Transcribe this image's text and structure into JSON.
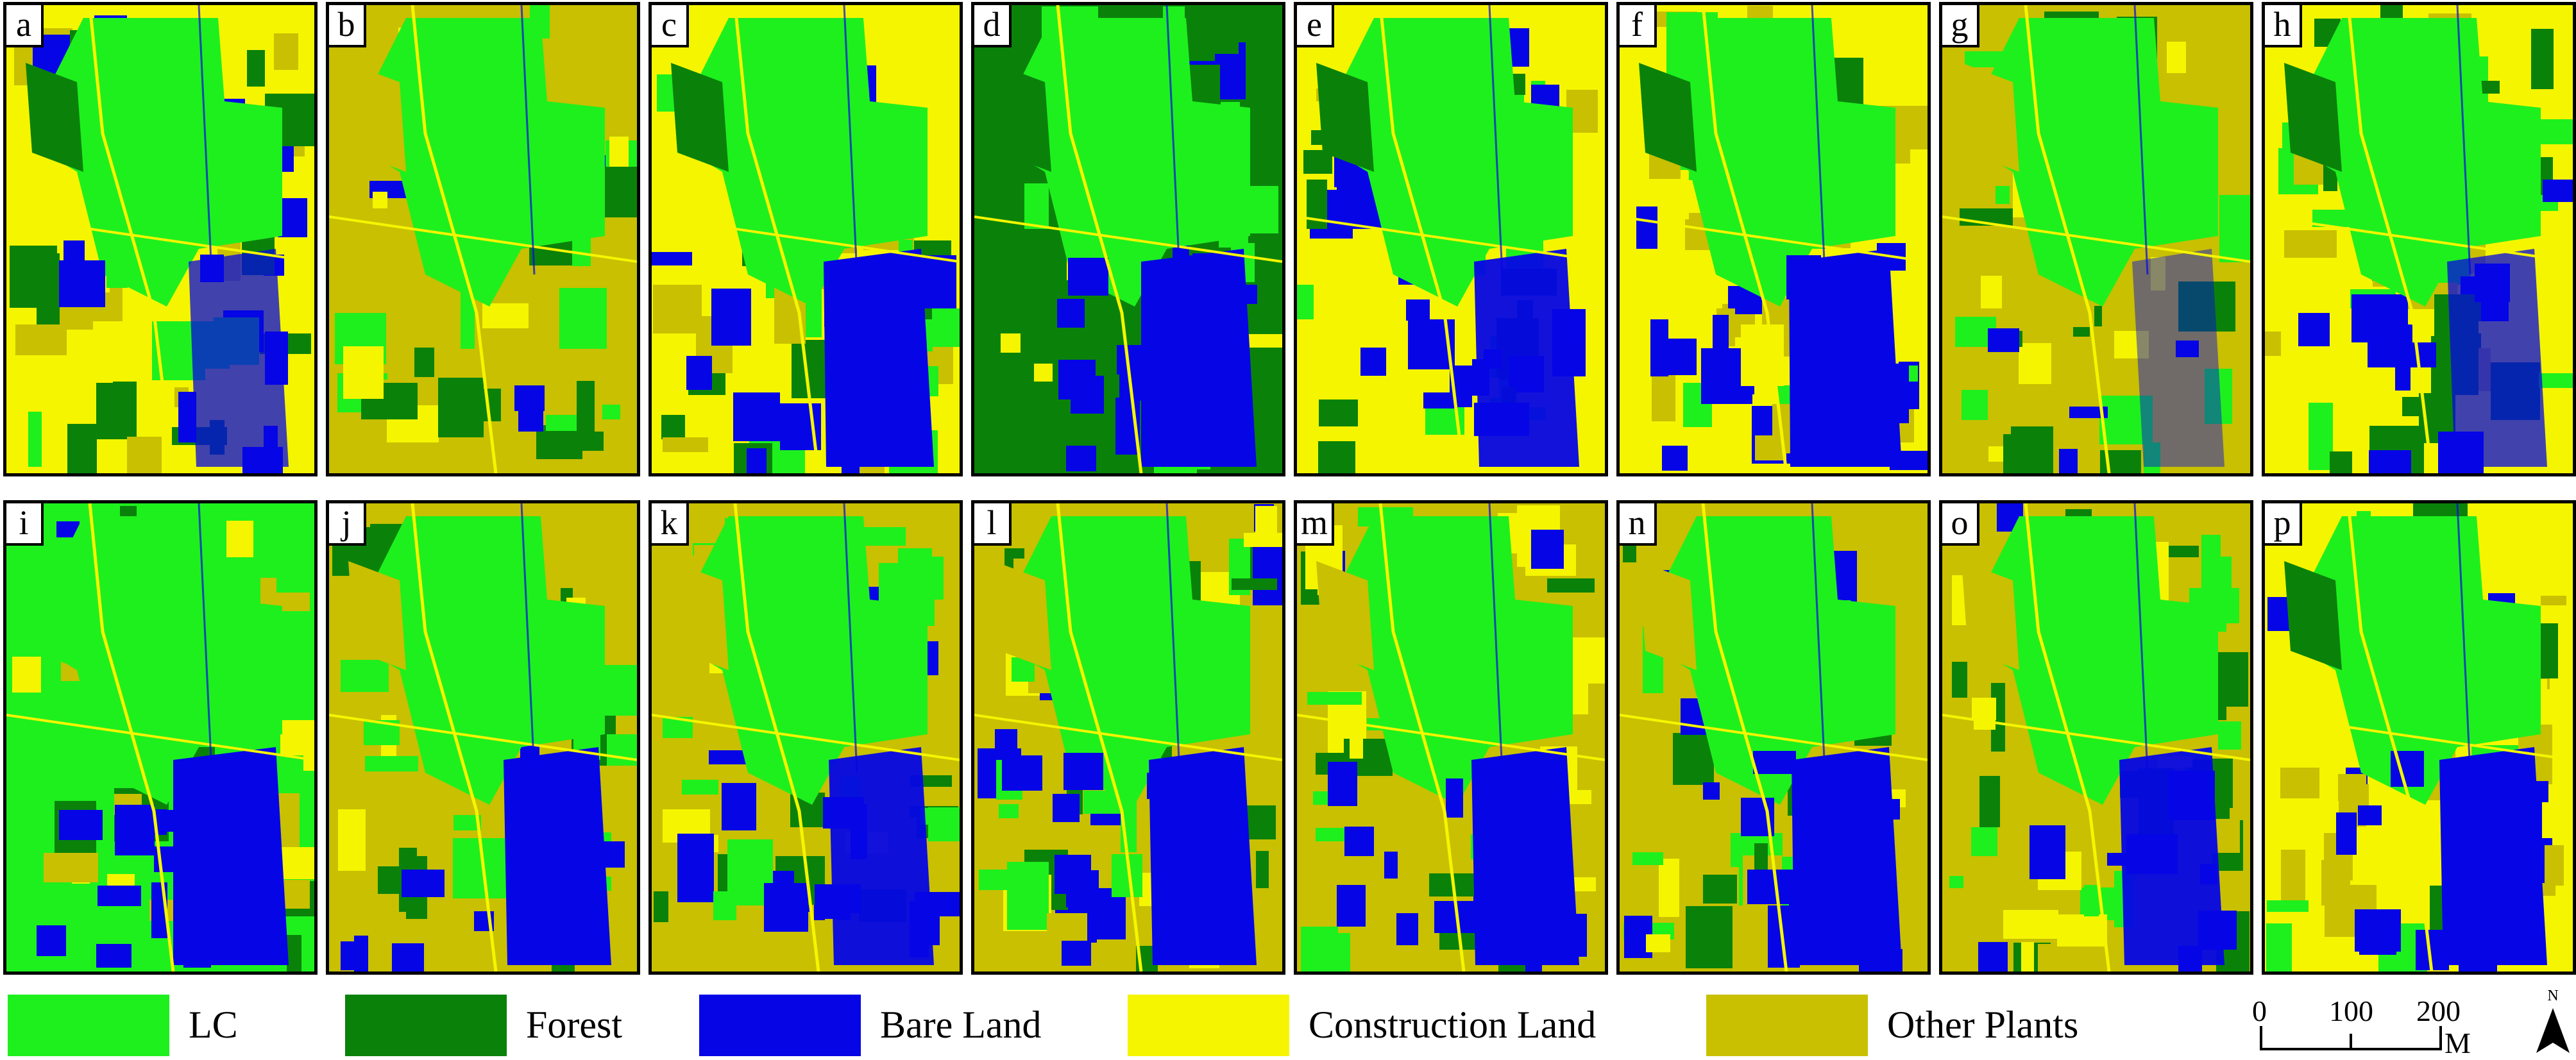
{
  "colors": {
    "lc": "#1ef01e",
    "forest": "#0a820a",
    "bare_land": "#0505e6",
    "construction_land": "#f5f500",
    "other_plants": "#c8c000"
  },
  "panels": [
    {
      "label": "a"
    },
    {
      "label": "b"
    },
    {
      "label": "c"
    },
    {
      "label": "d"
    },
    {
      "label": "e"
    },
    {
      "label": "f"
    },
    {
      "label": "g"
    },
    {
      "label": "h"
    },
    {
      "label": "i"
    },
    {
      "label": "j"
    },
    {
      "label": "k"
    },
    {
      "label": "l"
    },
    {
      "label": "m"
    },
    {
      "label": "n"
    },
    {
      "label": "o"
    },
    {
      "label": "p"
    }
  ],
  "legend": {
    "items": [
      {
        "label": "LC",
        "color": "#1ef01e"
      },
      {
        "label": "Forest",
        "color": "#0a820a"
      },
      {
        "label": "Bare Land",
        "color": "#0505e6"
      },
      {
        "label": "Construction Land",
        "color": "#f5f500"
      },
      {
        "label": "Other Plants",
        "color": "#c8c000"
      }
    ]
  },
  "scale_bar": {
    "tick_0": "0",
    "tick_1": "100",
    "tick_2": "200",
    "unit": "M"
  },
  "north_arrow": {
    "label": "N",
    "icon": "north-arrow-icon"
  }
}
